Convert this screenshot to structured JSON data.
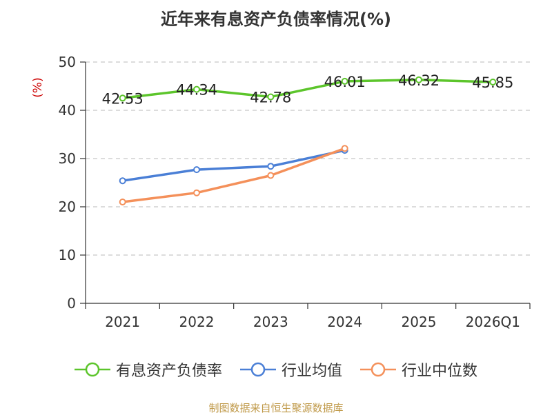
{
  "title": "近年来有息资产负债率情况(%)",
  "source_note": "制图数据来自恒生聚源数据库",
  "chart_data": {
    "type": "line",
    "ylabel": "(%)",
    "ylim": [
      0,
      50
    ],
    "yticks": [
      0,
      10,
      20,
      30,
      40,
      50
    ],
    "grid": true,
    "legend_position": "bottom",
    "categories": [
      "2021",
      "2022",
      "2023",
      "2024",
      "2025",
      "2026Q1"
    ],
    "series": [
      {
        "name": "有息资产负债率",
        "color": "#5cc52b",
        "show_labels": true,
        "values": [
          42.53,
          44.34,
          42.78,
          46.01,
          46.32,
          45.85
        ]
      },
      {
        "name": "行业均值",
        "color": "#4a7fd6",
        "show_labels": false,
        "values": [
          25.4,
          27.7,
          28.4,
          31.7,
          null,
          null
        ]
      },
      {
        "name": "行业中位数",
        "color": "#f4905a",
        "show_labels": false,
        "values": [
          21.0,
          22.9,
          26.5,
          32.1,
          null,
          null
        ]
      }
    ]
  }
}
